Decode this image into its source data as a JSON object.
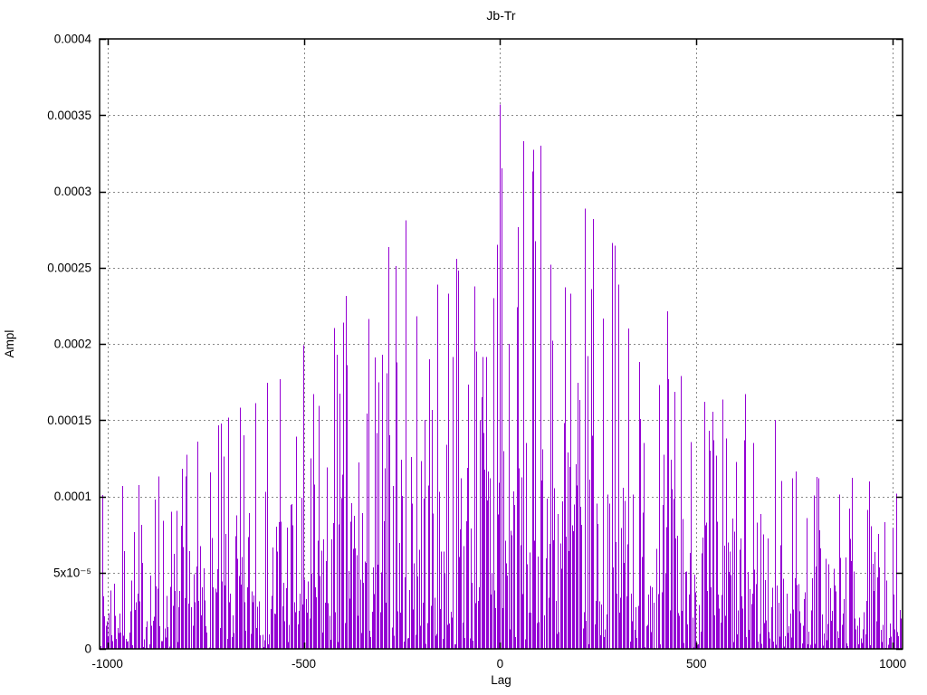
{
  "page": {
    "background": "#ffffff"
  },
  "chart_data": {
    "type": "impulses",
    "title": "Jb-Tr",
    "xlabel": "Lag",
    "ylabel": "Ampl",
    "xlim": [
      -1020,
      1025
    ],
    "ylim": [
      0,
      0.0004
    ],
    "xticks": [
      {
        "v": -1000,
        "label": "-1000"
      },
      {
        "v": -500,
        "label": "-500"
      },
      {
        "v": 0,
        "label": "0"
      },
      {
        "v": 500,
        "label": "500"
      },
      {
        "v": 1000,
        "label": "1000"
      }
    ],
    "yticks": [
      {
        "v": 0.0,
        "label": "0"
      },
      {
        "v": 5e-05,
        "label": "5x10⁻⁵"
      },
      {
        "v": 0.0001,
        "label": "0.0001"
      },
      {
        "v": 0.00015,
        "label": "0.00015"
      },
      {
        "v": 0.0002,
        "label": "0.0002"
      },
      {
        "v": 0.00025,
        "label": "0.00025"
      },
      {
        "v": 0.0003,
        "label": "0.0003"
      },
      {
        "v": 0.00035,
        "label": "0.00035"
      },
      {
        "v": 0.0004,
        "label": "0.0004"
      }
    ],
    "grid": {
      "show": true,
      "color": "#888888",
      "style": "dotted"
    },
    "line_color": "#9400d3",
    "border_color": "#000000",
    "background_color": "#ffffff",
    "legend": "none",
    "generator": {
      "seed": 7,
      "lag_min": -1020,
      "lag_max": 1020,
      "lag_step": 3,
      "envelope_base": 2.1e-05,
      "envelope_peak": 9.3e-05,
      "envelope_scale": 630,
      "envelope_power": 1.45,
      "noise_mean": 0.85,
      "clip_factor": 3.0
    },
    "notable_peaks": [
      [
        -871,
        0.000113
      ],
      [
        -800,
        0.000113
      ],
      [
        -705,
        0.000126
      ],
      [
        -655,
        0.00014
      ],
      [
        -625,
        0.000161
      ],
      [
        -560,
        0.000177
      ],
      [
        -478,
        0.000167
      ],
      [
        -418,
        0.000193
      ],
      [
        -390,
        0.000186
      ],
      [
        -317,
        0.000191
      ],
      [
        -268,
        0.000251
      ],
      [
        -214,
        0.000218
      ],
      [
        -158,
        0.000239
      ],
      [
        -132,
        0.000233
      ],
      [
        -107,
        0.000248
      ],
      [
        -60,
        0.000195
      ],
      [
        -17,
        0.00023
      ],
      [
        -8,
        0.000265
      ],
      [
        0,
        0.000357
      ],
      [
        3,
        0.000315
      ],
      [
        22,
        0.0002
      ],
      [
        43,
        0.000224
      ],
      [
        80,
        0.000313
      ],
      [
        101,
        0.00033
      ],
      [
        132,
        0.000202
      ],
      [
        165,
        0.000237
      ],
      [
        180,
        0.000233
      ],
      [
        230,
        0.000236
      ],
      [
        238,
        0.000282
      ],
      [
        299,
        0.000239
      ],
      [
        327,
        0.00021
      ],
      [
        405,
        0.000173
      ],
      [
        430,
        0.000177
      ],
      [
        460,
        0.000179
      ],
      [
        519,
        0.000162
      ],
      [
        575,
        0.000138
      ],
      [
        645,
        0.000135
      ],
      [
        743,
        0.000112
      ],
      [
        810,
        0.000112
      ],
      [
        888,
        9.2e-05
      ],
      [
        978,
        8.3e-05
      ]
    ]
  }
}
